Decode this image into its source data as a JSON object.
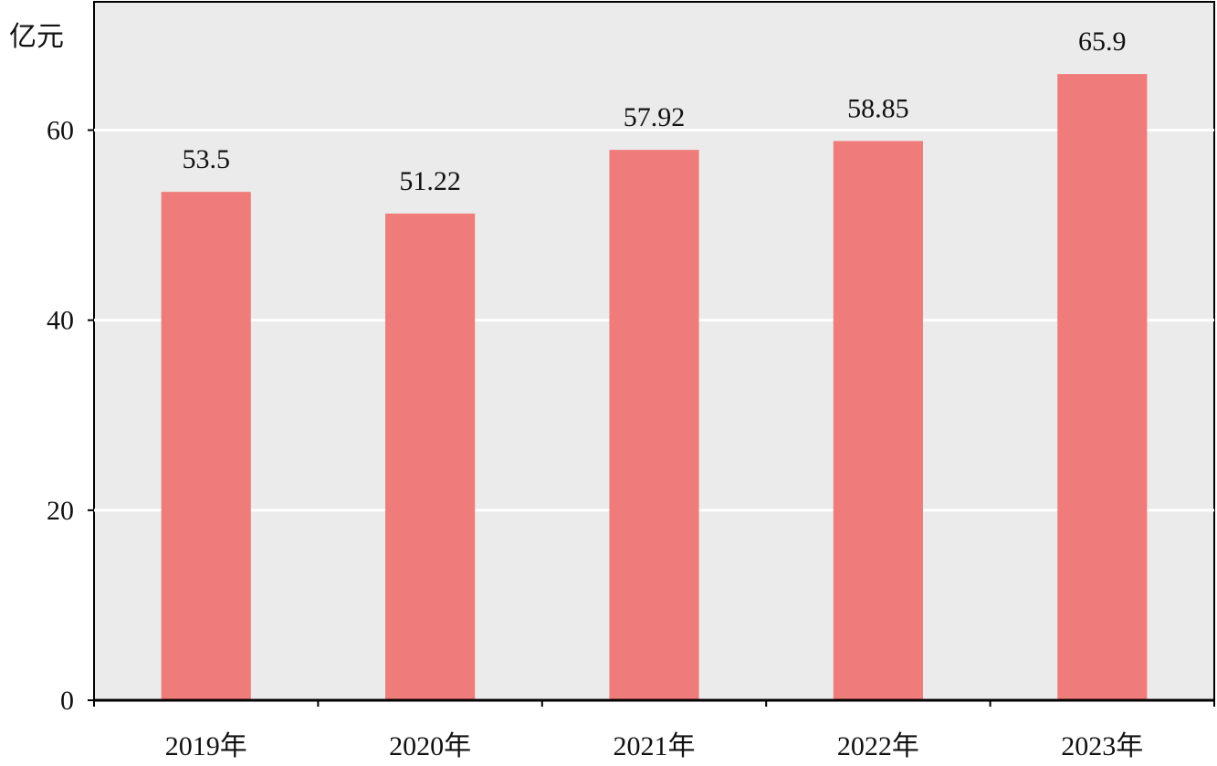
{
  "chart_data": {
    "type": "bar",
    "unit_label": "亿元",
    "categories": [
      "2019年",
      "2020年",
      "2021年",
      "2022年",
      "2023年"
    ],
    "values": [
      53.5,
      51.22,
      57.92,
      58.85,
      65.9
    ],
    "value_labels": [
      "53.5",
      "51.22",
      "57.92",
      "58.85",
      "65.9"
    ],
    "yticks": [
      0,
      20,
      40,
      60
    ],
    "ylim": [
      0,
      73.5
    ],
    "grid": true,
    "colors": {
      "bar": "#f07b7b",
      "plot_background": "#ebebeb",
      "gridline": "#ffffff",
      "axis": "#000000"
    }
  }
}
